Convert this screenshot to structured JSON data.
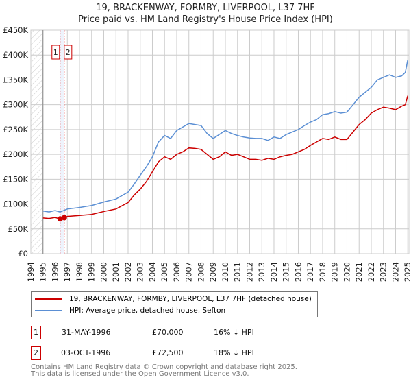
{
  "title": "19, BRACKENWAY, FORMBY, LIVERPOOL, L37 7HF",
  "subtitle": "Price paid vs. HM Land Registry's House Price Index (HPI)",
  "chart_data": {
    "type": "line",
    "xlim": [
      1994,
      2025
    ],
    "ylim": [
      0,
      450000
    ],
    "yticks": [
      0,
      50000,
      100000,
      150000,
      200000,
      250000,
      300000,
      350000,
      400000,
      450000
    ],
    "ytick_labels": [
      "£0",
      "£50K",
      "£100K",
      "£150K",
      "£200K",
      "£250K",
      "£300K",
      "£350K",
      "£400K",
      "£450K"
    ],
    "xtick_labels": [
      "1994",
      "1995",
      "1996",
      "1997",
      "1998",
      "1999",
      "2000",
      "2001",
      "2002",
      "2003",
      "2004",
      "2005",
      "2006",
      "2007",
      "2008",
      "2009",
      "2010",
      "2011",
      "2012",
      "2013",
      "2014",
      "2015",
      "2016",
      "2017",
      "2018",
      "2019",
      "2020",
      "2021",
      "2022",
      "2023",
      "2024",
      "2025"
    ],
    "series": [
      {
        "name": "19, BRACKENWAY, FORMBY, LIVERPOOL, L37 7HF (detached house)",
        "color": "#cc0000",
        "x": [
          1995,
          1995.5,
          1996,
          1996.4,
          1996.75,
          1997,
          1998,
          1999,
          2000,
          2001,
          2002,
          2002.5,
          2003,
          2003.5,
          2004,
          2004.5,
          2005,
          2005.5,
          2006,
          2006.5,
          2007,
          2007.5,
          2008,
          2008.5,
          2009,
          2009.5,
          2010,
          2010.5,
          2011,
          2011.5,
          2012,
          2012.5,
          2013,
          2013.5,
          2014,
          2014.5,
          2015,
          2015.5,
          2016,
          2016.5,
          2017,
          2017.5,
          2018,
          2018.5,
          2019,
          2019.5,
          2020,
          2020.5,
          2021,
          2021.5,
          2022,
          2022.5,
          2023,
          2023.5,
          2024,
          2024.5,
          2024.8,
          2025
        ],
        "y": [
          72000,
          71000,
          73000,
          70000,
          72500,
          75000,
          77000,
          79000,
          85000,
          90000,
          103000,
          118000,
          130000,
          145000,
          165000,
          185000,
          195000,
          190000,
          200000,
          205000,
          213000,
          212000,
          210000,
          200000,
          190000,
          195000,
          205000,
          198000,
          200000,
          195000,
          190000,
          190000,
          188000,
          192000,
          190000,
          195000,
          198000,
          200000,
          205000,
          210000,
          218000,
          225000,
          232000,
          230000,
          235000,
          230000,
          230000,
          245000,
          260000,
          270000,
          283000,
          290000,
          295000,
          293000,
          290000,
          297000,
          300000,
          318000
        ]
      },
      {
        "name": "HPI: Average price, detached house, Sefton",
        "color": "#5b8fd4",
        "x": [
          1995,
          1995.5,
          1996,
          1996.4,
          1997,
          1998,
          1999,
          2000,
          2001,
          2002,
          2002.5,
          2003,
          2003.5,
          2004,
          2004.5,
          2005,
          2005.5,
          2006,
          2006.5,
          2007,
          2007.5,
          2008,
          2008.5,
          2009,
          2009.5,
          2010,
          2010.5,
          2011,
          2011.5,
          2012,
          2012.5,
          2013,
          2013.5,
          2014,
          2014.5,
          2015,
          2015.5,
          2016,
          2016.5,
          2017,
          2017.5,
          2018,
          2018.5,
          2019,
          2019.5,
          2020,
          2020.5,
          2021,
          2021.5,
          2022,
          2022.5,
          2023,
          2023.5,
          2024,
          2024.5,
          2024.8,
          2025
        ],
        "y": [
          86000,
          84000,
          87000,
          84000,
          90000,
          93000,
          97000,
          104000,
          110000,
          124000,
          140000,
          158000,
          175000,
          195000,
          225000,
          238000,
          232000,
          248000,
          255000,
          262000,
          260000,
          258000,
          242000,
          232000,
          240000,
          248000,
          242000,
          238000,
          235000,
          233000,
          232000,
          232000,
          228000,
          235000,
          232000,
          240000,
          245000,
          250000,
          258000,
          265000,
          270000,
          280000,
          282000,
          286000,
          283000,
          285000,
          300000,
          315000,
          325000,
          335000,
          350000,
          355000,
          360000,
          355000,
          358000,
          365000,
          390000
        ]
      }
    ],
    "sales": [
      {
        "label": "1",
        "x": 1996.41,
        "y": 70000
      },
      {
        "label": "2",
        "x": 1996.75,
        "y": 72500
      }
    ]
  },
  "legend": {
    "red": "19, BRACKENWAY, FORMBY, LIVERPOOL, L37 7HF (detached house)",
    "blue": "HPI: Average price, detached house, Sefton"
  },
  "transactions": [
    {
      "num": "1",
      "date": "31-MAY-1996",
      "price": "£70,000",
      "hpi": "16% ↓ HPI"
    },
    {
      "num": "2",
      "date": "03-OCT-1996",
      "price": "£72,500",
      "hpi": "18% ↓ HPI"
    }
  ],
  "footer": {
    "line1": "Contains HM Land Registry data © Crown copyright and database right 2025.",
    "line2": "This data is licensed under the Open Government Licence v3.0."
  }
}
